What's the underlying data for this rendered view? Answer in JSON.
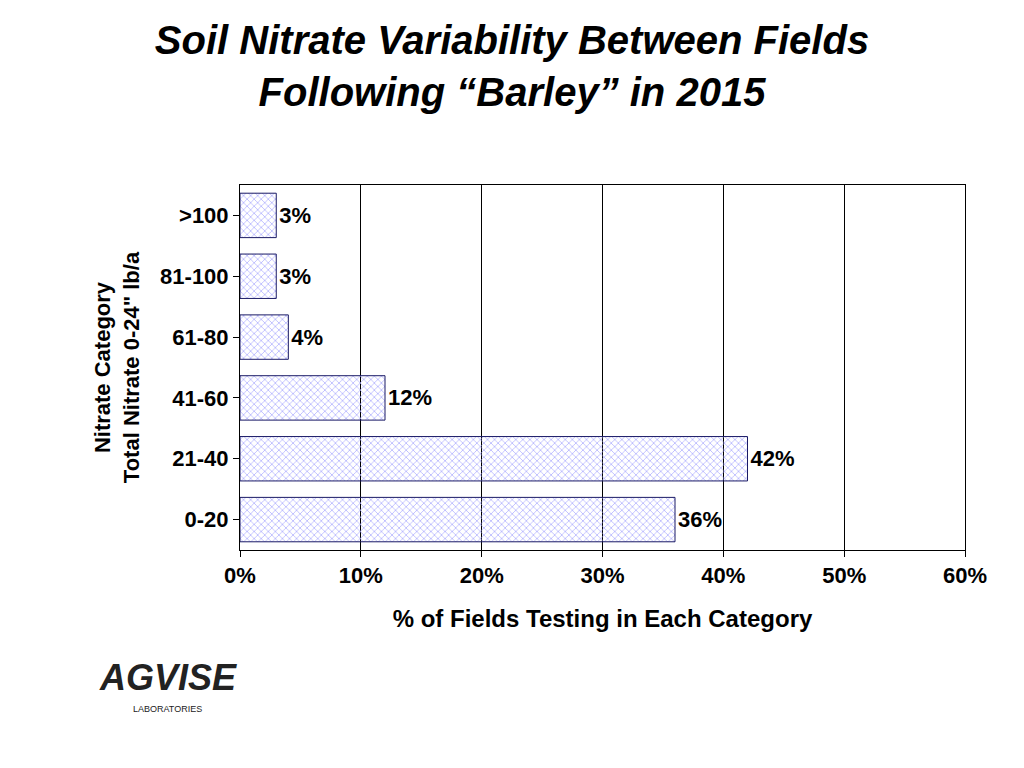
{
  "chart_data": {
    "type": "bar",
    "orientation": "horizontal",
    "title": "Soil Nitrate Variability Between Fields\nFollowing “Barley” in 2015",
    "x_label": "% of Fields Testing in Each Category",
    "y_label": "Nitrate Category\nTotal Nitrate 0-24\" lb/a",
    "categories": [
      "0-20",
      "21-40",
      "41-60",
      "61-80",
      "81-100",
      ">100"
    ],
    "values": [
      36,
      42,
      12,
      4,
      3,
      3
    ],
    "value_labels": [
      "36%",
      "42%",
      "12%",
      "4%",
      "3%",
      "3%"
    ],
    "data_labels": true,
    "color": "#3b3bff",
    "xlim": [
      0,
      60
    ],
    "xticks": [
      {
        "value": 0,
        "label": "0%"
      },
      {
        "value": 10,
        "label": "10%"
      },
      {
        "value": 20,
        "label": "20%"
      },
      {
        "value": 30,
        "label": "30%"
      },
      {
        "value": 40,
        "label": "40%"
      },
      {
        "value": 50,
        "label": "50%"
      },
      {
        "value": 60,
        "label": "60%"
      }
    ],
    "grid": true,
    "annotations": [
      {
        "text": "AGVISE"
      },
      {
        "text": "LABORATORIES"
      }
    ]
  }
}
